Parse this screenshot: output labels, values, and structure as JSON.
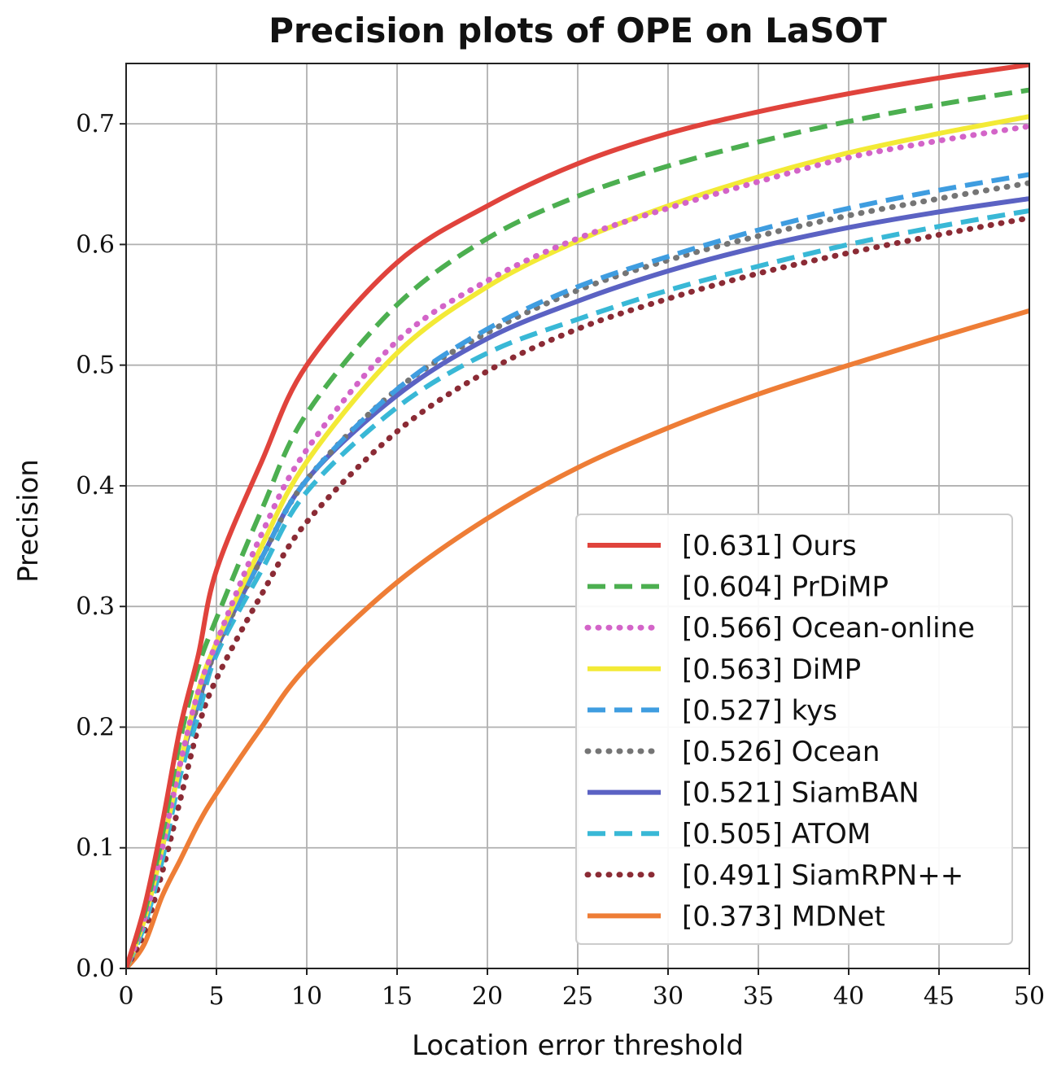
{
  "chart_data": {
    "type": "line",
    "title": "Precision plots of OPE on LaSOT",
    "xlabel": "Location error threshold",
    "ylabel": "Precision",
    "xlim": [
      0,
      50
    ],
    "ylim": [
      0,
      0.75
    ],
    "xticks": [
      0,
      5,
      10,
      15,
      20,
      25,
      30,
      35,
      40,
      45,
      50
    ],
    "yticks": [
      0.0,
      0.1,
      0.2,
      0.3,
      0.4,
      0.5,
      0.6,
      0.7
    ],
    "xtick_labels": [
      "0",
      "5",
      "10",
      "15",
      "20",
      "25",
      "30",
      "35",
      "40",
      "45",
      "50"
    ],
    "ytick_labels": [
      "0.0",
      "0.1",
      "0.2",
      "0.3",
      "0.4",
      "0.5",
      "0.6",
      "0.7"
    ],
    "grid": true,
    "legend_position": "lower-right",
    "x": [
      0,
      1,
      2,
      3,
      4,
      5,
      7.5,
      10,
      15,
      20,
      25,
      30,
      35,
      40,
      45,
      50
    ],
    "series": [
      {
        "name": "Ours",
        "legend_label": "[0.631] Ours",
        "color": "#e0433c",
        "style": "solid",
        "values": [
          0.0,
          0.05,
          0.12,
          0.2,
          0.26,
          0.33,
          0.42,
          0.5,
          0.585,
          0.632,
          0.667,
          0.692,
          0.71,
          0.725,
          0.738,
          0.749
        ]
      },
      {
        "name": "PrDiMP",
        "legend_label": "[0.604] PrDiMP",
        "color": "#4caf50",
        "style": "dashed",
        "values": [
          0.0,
          0.045,
          0.11,
          0.19,
          0.25,
          0.29,
          0.38,
          0.46,
          0.55,
          0.605,
          0.64,
          0.665,
          0.685,
          0.702,
          0.716,
          0.728
        ]
      },
      {
        "name": "Ocean-online",
        "legend_label": "[0.566] Ocean-online",
        "color": "#d364c8",
        "style": "dotted",
        "values": [
          0.0,
          0.04,
          0.1,
          0.17,
          0.23,
          0.27,
          0.36,
          0.43,
          0.52,
          0.57,
          0.605,
          0.63,
          0.652,
          0.672,
          0.686,
          0.698
        ]
      },
      {
        "name": "DiMP",
        "legend_label": "[0.563] DiMP",
        "color": "#f3ea36",
        "style": "solid",
        "values": [
          0.0,
          0.04,
          0.1,
          0.17,
          0.23,
          0.27,
          0.35,
          0.42,
          0.51,
          0.565,
          0.603,
          0.632,
          0.656,
          0.676,
          0.692,
          0.706
        ]
      },
      {
        "name": "kys",
        "legend_label": "[0.527] kys",
        "color": "#3f9de0",
        "style": "dashed",
        "values": [
          0.0,
          0.04,
          0.1,
          0.17,
          0.22,
          0.265,
          0.34,
          0.405,
          0.48,
          0.53,
          0.565,
          0.59,
          0.612,
          0.63,
          0.645,
          0.658
        ]
      },
      {
        "name": "Ocean",
        "legend_label": "[0.526] Ocean",
        "color": "#757575",
        "style": "dotted",
        "values": [
          0.0,
          0.04,
          0.1,
          0.17,
          0.22,
          0.265,
          0.34,
          0.405,
          0.48,
          0.527,
          0.562,
          0.587,
          0.607,
          0.624,
          0.638,
          0.651
        ]
      },
      {
        "name": "SiamBAN",
        "legend_label": "[0.521] SiamBAN",
        "color": "#5b62c3",
        "style": "solid",
        "values": [
          0.0,
          0.04,
          0.1,
          0.17,
          0.22,
          0.265,
          0.34,
          0.405,
          0.475,
          0.522,
          0.553,
          0.578,
          0.598,
          0.614,
          0.627,
          0.638
        ]
      },
      {
        "name": "ATOM",
        "legend_label": "[0.505] ATOM",
        "color": "#39b8d6",
        "style": "dashed",
        "values": [
          0.0,
          0.035,
          0.09,
          0.16,
          0.21,
          0.26,
          0.33,
          0.395,
          0.465,
          0.51,
          0.538,
          0.562,
          0.582,
          0.6,
          0.615,
          0.628
        ]
      },
      {
        "name": "SiamRPN++",
        "legend_label": "[0.491] SiamRPN++",
        "color": "#8b2b35",
        "style": "dotted",
        "values": [
          0.0,
          0.03,
          0.08,
          0.14,
          0.2,
          0.24,
          0.31,
          0.37,
          0.445,
          0.495,
          0.53,
          0.555,
          0.576,
          0.593,
          0.608,
          0.622
        ]
      },
      {
        "name": "MDNet",
        "legend_label": "[0.373] MDNet",
        "color": "#ee7d36",
        "style": "solid",
        "values": [
          0.0,
          0.02,
          0.06,
          0.09,
          0.12,
          0.145,
          0.2,
          0.25,
          0.32,
          0.373,
          0.415,
          0.448,
          0.476,
          0.5,
          0.523,
          0.545
        ]
      }
    ]
  }
}
